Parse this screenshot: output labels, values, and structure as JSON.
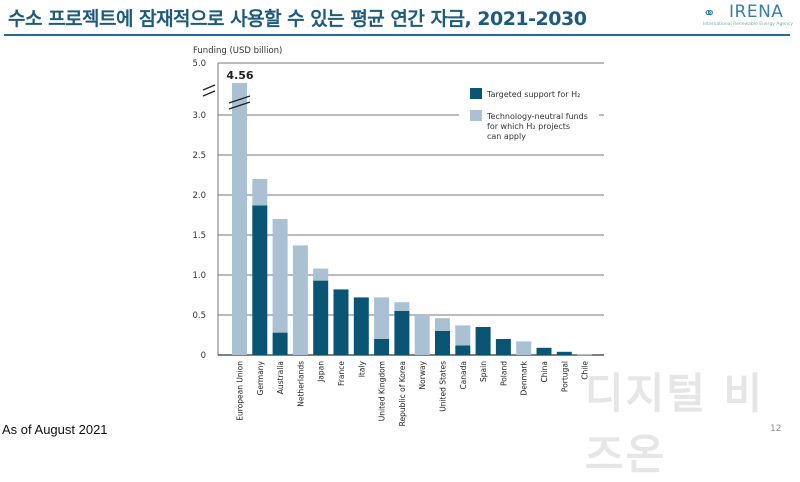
{
  "header": {
    "title": "수소 프로젝트에 잠재적으로 사용할 수 있는 평균 연간 자금, 2021-2030",
    "logo_text": "IRENA",
    "logo_subtext": "International Renewable Energy Agency"
  },
  "footer": {
    "note": "As of August 2021",
    "page_number": "12",
    "watermark": "디지털 비즈온"
  },
  "colors": {
    "targeted": "#0b5574",
    "neutral": "#a9c1d2",
    "grid": "#777777",
    "title": "#1d5b7e"
  },
  "chart_data": {
    "type": "bar",
    "stacked": true,
    "ylabel": "Funding (USD billion)",
    "ylim": [
      0,
      5.0
    ],
    "axis_break": [
      3.0,
      5.0
    ],
    "yticks": [
      "0",
      "0.5",
      "1.0",
      "1.5",
      "2.0",
      "2.5",
      "3.0",
      "5.0"
    ],
    "grid": true,
    "legend_position": "top-right",
    "annotation": "4.56",
    "categories": [
      "European Union",
      "Germany",
      "Australia",
      "Netherlands",
      "Japan",
      "France",
      "Italy",
      "United Kingdom",
      "Republic of Korea",
      "Norway",
      "United States",
      "Canada",
      "Spain",
      "Poland",
      "Denmark",
      "China",
      "Portugal",
      "Chile"
    ],
    "series": [
      {
        "name": "Targeted support for H₂",
        "values": [
          0,
          1.87,
          0.28,
          0,
          0.93,
          0.82,
          0.72,
          0.2,
          0.55,
          0,
          0.3,
          0.12,
          0.35,
          0.2,
          0,
          0.09,
          0.04,
          0
        ]
      },
      {
        "name": "Technology-neutral funds for which H₂ projects can apply",
        "values": [
          4.56,
          0.33,
          1.42,
          1.37,
          0.15,
          0,
          0,
          0.52,
          0.11,
          0.5,
          0.16,
          0.25,
          0,
          0,
          0.17,
          0,
          0,
          0.01
        ]
      }
    ],
    "legend": [
      {
        "lines": [
          "Targeted support for H₂"
        ]
      },
      {
        "lines": [
          "Technology-neutral funds",
          "for which H₂ projects",
          "can apply"
        ]
      }
    ]
  }
}
